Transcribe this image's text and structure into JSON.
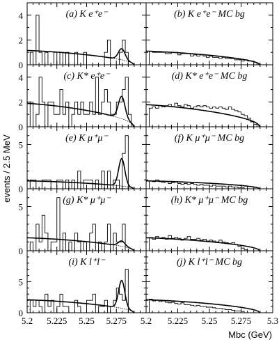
{
  "chart_data": {
    "type": "histogram-grid",
    "layout": {
      "rows": 5,
      "cols": 2
    },
    "ylabel": "events / 2.5 MeV",
    "xlabel": "Mbc (GeV)",
    "xlim": [
      5.2,
      5.3
    ],
    "x_ticks_left": [
      "5.2",
      "5.225",
      "5.25",
      "5.275"
    ],
    "x_ticks_right": [
      "5.2",
      "5.225",
      "5.25",
      "5.275",
      "5.3"
    ],
    "bin_width": 0.0025,
    "panels": [
      {
        "label": "(a) K e⁺e⁻",
        "ylim": [
          0,
          5
        ],
        "yticks": [
          "0",
          "2",
          "4"
        ],
        "x0": 5.2025,
        "counts": [
          1,
          0,
          4,
          1,
          0,
          1,
          0,
          0,
          1,
          0,
          1,
          0,
          1,
          0,
          0,
          1,
          0,
          0,
          1,
          0,
          0,
          0,
          0,
          0,
          0,
          1,
          2,
          0,
          0,
          0,
          1,
          2,
          1,
          0
        ],
        "fit": {
          "bg": 1.1,
          "peak": 0.9,
          "mean": 5.2795,
          "sigma": 0.0028
        }
      },
      {
        "label": "(b) K e⁺e⁻ MC bg",
        "ylim": [
          0,
          5
        ],
        "yticks": [],
        "x0": 5.2025,
        "counts": [
          1.1,
          1.0,
          1.0,
          1.0,
          1.0,
          0.9,
          0.9,
          1.0,
          1.0,
          0.8,
          0.9,
          0.9,
          0.9,
          0.7,
          0.8,
          0.7,
          0.8,
          0.7,
          0.6,
          0.7,
          0.6,
          0.6,
          0.5,
          0.6,
          0.5,
          0.5,
          0.5,
          0.4,
          0.4,
          0.3,
          0.4,
          0.3,
          0.3,
          0.2
        ],
        "fit": {
          "bg": 1.05,
          "peak": 0,
          "mean": 5.28,
          "sigma": 0.003
        }
      },
      {
        "label": "(c) K* e⁺e⁻",
        "ylim": [
          0,
          5
        ],
        "yticks": [
          "0",
          "2",
          "4"
        ],
        "x0": 5.2025,
        "counts": [
          2,
          0,
          1,
          4,
          2,
          0,
          2,
          2,
          1,
          1,
          3,
          1,
          2,
          0,
          1,
          2,
          1,
          2,
          1,
          1,
          2,
          1,
          4,
          1,
          2,
          3,
          2,
          1,
          1,
          2,
          2,
          3,
          4,
          1,
          0
        ],
        "fit": {
          "bg": 1.8,
          "peak": 1.8,
          "mean": 5.2795,
          "sigma": 0.0028
        }
      },
      {
        "label": "(d) K* e⁺e⁻ MC bg",
        "ylim": [
          0,
          5
        ],
        "yticks": [],
        "x0": 5.2025,
        "counts": [
          1.5,
          1.6,
          1.5,
          1.7,
          1.6,
          1.7,
          1.8,
          1.6,
          1.9,
          1.7,
          1.6,
          1.8,
          1.7,
          1.5,
          1.6,
          1.7,
          1.6,
          1.7,
          1.6,
          1.5,
          1.6,
          1.5,
          1.6,
          1.5,
          1.4,
          1.6,
          1.4,
          1.3,
          1.2,
          1.0,
          0.9,
          0.7,
          0.4,
          0.2
        ],
        "fit": {
          "bg": 1.7,
          "peak": 0,
          "mean": 5.28,
          "sigma": 0.003
        }
      },
      {
        "label": "(e) K μ⁺μ⁻",
        "ylim": [
          0,
          7
        ],
        "yticks": [
          "0",
          "5"
        ],
        "x0": 5.2025,
        "counts": [
          1,
          1,
          0,
          0,
          1,
          1,
          1,
          0,
          0,
          1,
          1,
          0,
          1,
          0,
          1,
          0,
          2,
          0,
          1,
          1,
          1,
          0,
          1,
          0,
          2,
          0,
          2,
          0,
          1,
          1,
          0,
          4,
          6,
          0
        ],
        "fit": {
          "bg": 0.85,
          "peak": 3.1,
          "mean": 5.2795,
          "sigma": 0.0026
        }
      },
      {
        "label": "(f) K μ⁺μ⁻ MC bg",
        "ylim": [
          0,
          7
        ],
        "yticks": [],
        "x0": 5.2025,
        "counts": [
          0.9,
          0.8,
          1.0,
          0.8,
          0.7,
          0.8,
          0.6,
          0.7,
          0.8,
          0.6,
          0.5,
          0.6,
          0.5,
          0.6,
          0.5,
          0.4,
          0.5,
          0.4,
          0.4,
          0.3,
          0.4,
          0.3,
          0.3,
          0.3,
          0.2,
          0.3,
          0.2,
          0.2,
          0.1,
          0.1
        ],
        "fit": {
          "bg": 0.85,
          "peak": 0,
          "mean": 5.28,
          "sigma": 0.003
        }
      },
      {
        "label": "(g) K* μ⁺μ⁻",
        "ylim": [
          0,
          7
        ],
        "yticks": [
          "0",
          "5"
        ],
        "x0": 5.2025,
        "counts": [
          1,
          0,
          3,
          1,
          4,
          2,
          0,
          1,
          1,
          6,
          0,
          2,
          0,
          1,
          0,
          2,
          1,
          0,
          1,
          0,
          2,
          3,
          0,
          1,
          0,
          1,
          3,
          0,
          2,
          1,
          1,
          3,
          0,
          0,
          0
        ],
        "fit": {
          "bg": 1.4,
          "peak": 0.6,
          "mean": 5.2795,
          "sigma": 0.0028
        }
      },
      {
        "label": "(h) K* μ⁺μ⁻ MC bg",
        "ylim": [
          0,
          7
        ],
        "yticks": [],
        "x0": 5.2025,
        "counts": [
          1.5,
          1.3,
          1.6,
          1.4,
          1.5,
          1.3,
          1.7,
          1.4,
          1.5,
          1.4,
          1.2,
          1.4,
          1.6,
          1.3,
          1.3,
          1.4,
          1.2,
          1.3,
          1.1,
          1.2,
          1.1,
          1.0,
          1.2,
          1.0,
          0.9,
          0.8,
          0.9,
          0.7,
          0.5,
          0.3,
          0.1
        ],
        "fit": {
          "bg": 1.4,
          "peak": 0,
          "mean": 5.28,
          "sigma": 0.003
        }
      },
      {
        "label": "(i) K l⁺l⁻",
        "ylim": [
          0,
          10
        ],
        "yticks": [
          "0",
          "5"
        ],
        "x0": 5.2025,
        "counts": [
          2,
          1,
          2,
          1,
          0,
          3,
          1,
          2,
          0,
          1,
          3,
          1,
          1,
          0,
          0,
          2,
          1,
          0,
          0,
          2,
          2,
          3,
          0,
          1,
          1,
          2,
          0,
          1,
          2,
          4,
          3,
          2,
          7,
          0
        ],
        "fit": {
          "bg": 2.0,
          "peak": 4.5,
          "mean": 5.2795,
          "sigma": 0.0026
        }
      },
      {
        "label": "(j) K l⁺l⁻ MC bg",
        "ylim": [
          0,
          10
        ],
        "yticks": [],
        "x0": 5.2025,
        "counts": [
          2.2,
          1.9,
          2.0,
          1.8,
          1.9,
          1.7,
          1.6,
          1.7,
          1.5,
          1.4,
          1.6,
          1.3,
          1.3,
          1.2,
          1.1,
          1.2,
          1.0,
          1.0,
          0.9,
          0.9,
          0.8,
          0.7,
          0.7,
          0.6,
          0.5,
          0.5,
          0.4,
          0.3,
          0.3,
          0.2
        ],
        "fit": {
          "bg": 2.0,
          "peak": 0,
          "mean": 5.28,
          "sigma": 0.003
        }
      }
    ]
  }
}
